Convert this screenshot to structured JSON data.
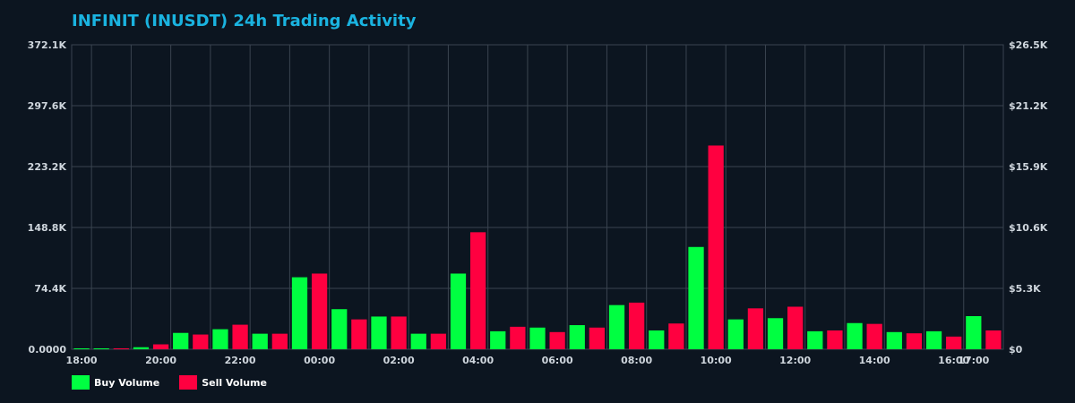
{
  "chart_data": {
    "type": "bar",
    "title": "INFINIT (INUSDT) 24h Trading Activity",
    "x_tick_labels": [
      "18:00",
      "20:00",
      "22:00",
      "00:00",
      "02:00",
      "04:00",
      "06:00",
      "08:00",
      "10:00",
      "12:00",
      "14:00",
      "16:00",
      "17:00"
    ],
    "y_left": {
      "ylim": [
        0,
        372100
      ],
      "tick_values": [
        0,
        74400,
        148800,
        223200,
        297600,
        372100
      ],
      "tick_labels": [
        "0.0000",
        "74.4K",
        "148.8K",
        "223.2K",
        "297.6K",
        "372.1K"
      ]
    },
    "y_right": {
      "ylim": [
        0,
        26500
      ],
      "tick_labels": [
        "$0",
        "$5.3K",
        "$10.6K",
        "$15.9K",
        "$21.2K",
        "$26.5K"
      ]
    },
    "grid": true,
    "legend_position": "bottom-left",
    "series": [
      {
        "name": "Buy Volume",
        "color": "#00ff41",
        "values": [
          1000,
          800,
          0,
          2500,
          0,
          20000,
          0,
          24500,
          0,
          19000,
          0,
          88000,
          0,
          49000,
          0,
          40000,
          0,
          19000,
          0,
          92500,
          0,
          22000,
          0,
          26500,
          0,
          29500,
          0,
          54000,
          0,
          23000,
          0,
          125000,
          0,
          36500,
          0,
          38000,
          0,
          22000,
          0,
          32000,
          0,
          21000,
          0,
          22000,
          0,
          40500,
          0
        ]
      },
      {
        "name": "Sell Volume",
        "color": "#ff0040",
        "values": [
          0,
          0,
          800,
          0,
          6000,
          0,
          18000,
          0,
          30000,
          0,
          19000,
          0,
          92500,
          0,
          36500,
          0,
          40000,
          0,
          19000,
          0,
          143000,
          0,
          27500,
          0,
          21000,
          0,
          26500,
          0,
          57000,
          0,
          31500,
          0,
          249000,
          0,
          50000,
          0,
          52000,
          0,
          23000,
          0,
          31000,
          0,
          19500,
          0,
          15500,
          0,
          23000
        ]
      }
    ]
  },
  "colors": {
    "background": "#0c1520",
    "title": "#1ab3e0",
    "grid": "#3a4450",
    "tick_text": "#cfd6dd"
  }
}
